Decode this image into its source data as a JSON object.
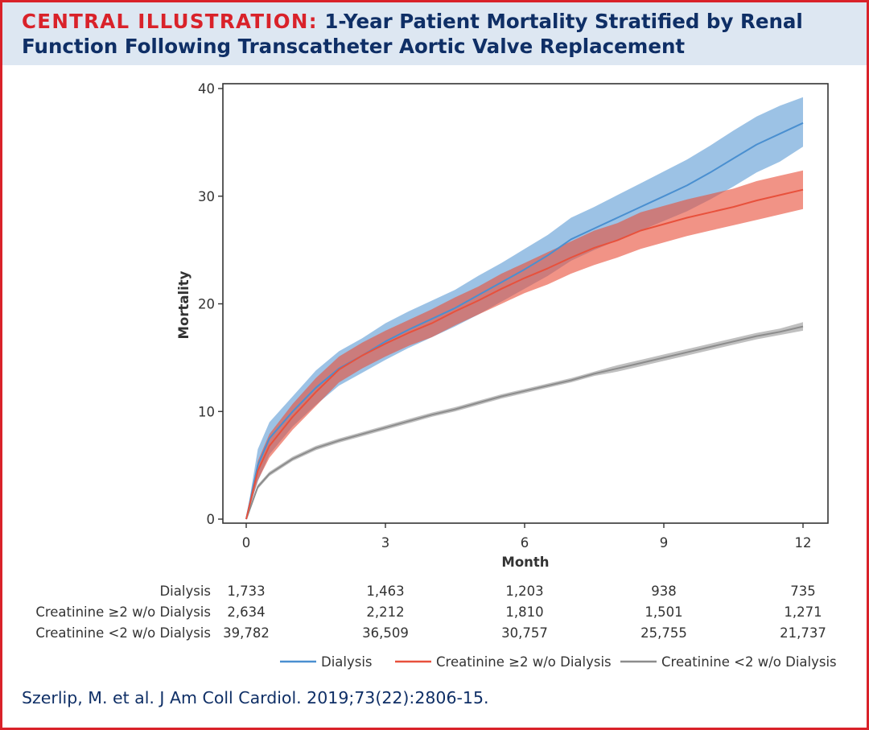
{
  "header": {
    "label": "CENTRAL ILLUSTRATION:",
    "title": "1-Year Patient Mortality Stratified by Renal Function Following Transcatheter Aortic Valve Replacement"
  },
  "citation": "Szerlip, M. et al. J Am Coll Cardiol. 2019;73(22):2806-15.",
  "colors": {
    "title_red": "#d9222a",
    "title_navy": "#0f2f66",
    "header_bg": "#dde7f2",
    "dialysis": "#4a8fd0",
    "creatinine_ge2": "#e8513c",
    "creatinine_lt2": "#8c8c8c"
  },
  "chart_data": {
    "type": "line",
    "xlabel": "Month",
    "ylabel": "Mortality",
    "xlim": [
      0,
      12
    ],
    "ylim": [
      0,
      40
    ],
    "xticks": [
      0,
      3,
      6,
      9,
      12
    ],
    "yticks": [
      0,
      10,
      20,
      30,
      40
    ],
    "legend_position": "bottom",
    "series": [
      {
        "name": "Dialysis",
        "color": "#4a8fd0",
        "x": [
          0,
          0.25,
          0.5,
          1,
          1.5,
          2,
          2.5,
          3,
          3.5,
          4,
          4.5,
          5,
          5.5,
          6,
          6.5,
          7,
          7.5,
          8,
          8.5,
          9,
          9.5,
          10,
          10.5,
          11,
          11.5,
          12
        ],
        "y": [
          0,
          5,
          7.5,
          10,
          12.2,
          14,
          15.2,
          16.5,
          17.6,
          18.6,
          19.6,
          20.8,
          22,
          23.2,
          24.5,
          26,
          27,
          28,
          29,
          30,
          31,
          32.2,
          33.5,
          34.8,
          35.8,
          36.8
        ],
        "ci_lower": [
          0,
          3.5,
          6,
          8.6,
          10.6,
          12.4,
          13.6,
          14.8,
          15.9,
          16.9,
          17.9,
          19,
          20.2,
          21.4,
          22.6,
          24,
          25,
          25.9,
          26.8,
          27.7,
          28.6,
          29.7,
          30.9,
          32.2,
          33.2,
          34.6
        ],
        "ci_upper": [
          0,
          6.5,
          9,
          11.4,
          13.8,
          15.6,
          16.8,
          18.2,
          19.3,
          20.3,
          21.3,
          22.6,
          23.8,
          25.1,
          26.4,
          28,
          29,
          30.1,
          31.2,
          32.3,
          33.4,
          34.7,
          36.1,
          37.4,
          38.4,
          39.2
        ]
      },
      {
        "name": "Creatinine ≥2 w/o Dialysis",
        "color": "#e8513c",
        "x": [
          0,
          0.25,
          0.5,
          1,
          1.5,
          2,
          2.5,
          3,
          3.5,
          4,
          4.5,
          5,
          5.5,
          6,
          6.5,
          7,
          7.5,
          8,
          8.5,
          9,
          9.5,
          10,
          10.5,
          11,
          11.5,
          12
        ],
        "y": [
          0,
          4.5,
          6.8,
          9.5,
          11.8,
          13.9,
          15.2,
          16.3,
          17.3,
          18.2,
          19.3,
          20.3,
          21.4,
          22.4,
          23.3,
          24.3,
          25.2,
          25.9,
          26.8,
          27.4,
          28,
          28.5,
          29,
          29.6,
          30.1,
          30.6
        ],
        "ci_lower": [
          0,
          3.6,
          5.7,
          8.3,
          10.5,
          12.7,
          14,
          15.1,
          16.1,
          16.9,
          18,
          19,
          20,
          21,
          21.8,
          22.8,
          23.6,
          24.3,
          25.1,
          25.7,
          26.3,
          26.8,
          27.3,
          27.8,
          28.3,
          28.8
        ],
        "ci_upper": [
          0,
          5.4,
          7.9,
          10.7,
          13.1,
          15.1,
          16.4,
          17.5,
          18.5,
          19.5,
          20.6,
          21.6,
          22.8,
          23.8,
          24.8,
          25.8,
          26.8,
          27.5,
          28.5,
          29.1,
          29.7,
          30.2,
          30.7,
          31.4,
          31.9,
          32.4
        ]
      },
      {
        "name": "Creatinine <2 w/o Dialysis",
        "color": "#8c8c8c",
        "x": [
          0,
          0.25,
          0.5,
          1,
          1.5,
          2,
          2.5,
          3,
          3.5,
          4,
          4.5,
          5,
          5.5,
          6,
          6.5,
          7,
          7.5,
          8,
          8.5,
          9,
          9.5,
          10,
          10.5,
          11,
          11.5,
          12
        ],
        "y": [
          0,
          3,
          4.2,
          5.6,
          6.6,
          7.3,
          7.9,
          8.5,
          9.1,
          9.7,
          10.2,
          10.8,
          11.4,
          11.9,
          12.4,
          12.9,
          13.5,
          14,
          14.5,
          15,
          15.5,
          16,
          16.5,
          17,
          17.4,
          17.9
        ],
        "ci_lower": [
          0,
          2.8,
          4,
          5.4,
          6.4,
          7.1,
          7.7,
          8.3,
          8.9,
          9.5,
          10,
          10.6,
          11.2,
          11.7,
          12.2,
          12.7,
          13.3,
          13.7,
          14.2,
          14.7,
          15.2,
          15.7,
          16.2,
          16.7,
          17.1,
          17.5
        ],
        "ci_upper": [
          0,
          3.2,
          4.4,
          5.8,
          6.8,
          7.5,
          8.1,
          8.7,
          9.3,
          9.9,
          10.4,
          11,
          11.6,
          12.1,
          12.6,
          13.1,
          13.7,
          14.3,
          14.8,
          15.3,
          15.8,
          16.3,
          16.8,
          17.3,
          17.7,
          18.3
        ]
      }
    ],
    "risk_table": {
      "time_points": [
        0,
        3,
        6,
        9,
        12
      ],
      "rows": [
        {
          "label": "Dialysis",
          "values": [
            "1,733",
            "1,463",
            "1,203",
            "938",
            "735"
          ]
        },
        {
          "label": "Creatinine ≥2 w/o Dialysis",
          "values": [
            "2,634",
            "2,212",
            "1,810",
            "1,501",
            "1,271"
          ]
        },
        {
          "label": "Creatinine <2 w/o Dialysis",
          "values": [
            "39,782",
            "36,509",
            "30,757",
            "25,755",
            "21,737"
          ]
        }
      ]
    }
  }
}
